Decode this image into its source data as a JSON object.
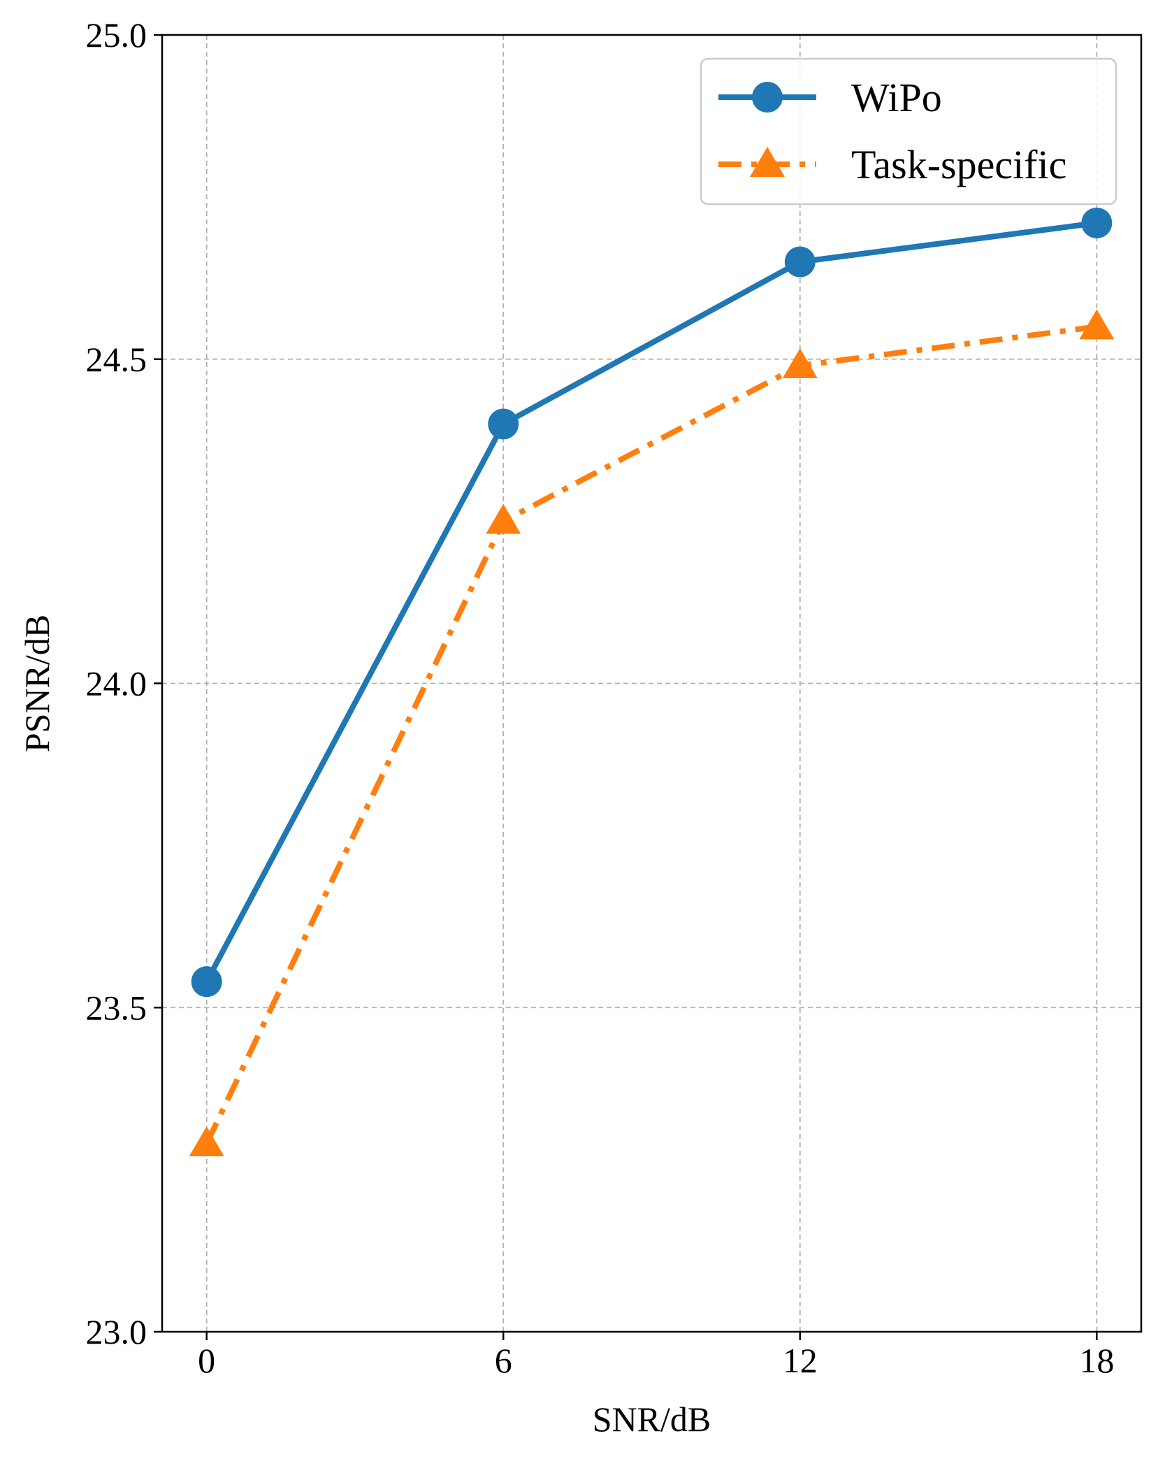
{
  "chart_data": {
    "type": "line",
    "xlabel": "SNR/dB",
    "ylabel": "PSNR/dB",
    "x": [
      0,
      6,
      12,
      18
    ],
    "xticks": [
      "0",
      "6",
      "12",
      "18"
    ],
    "xlim": [
      -0.9,
      18.9
    ],
    "ylim": [
      23.0,
      25.0
    ],
    "yticks": [
      "23.0",
      "23.5",
      "24.0",
      "24.5",
      "25.0"
    ],
    "grid": true,
    "legend_position": "top-right",
    "series": [
      {
        "name": "WiPo",
        "values": [
          23.54,
          24.4,
          24.65,
          24.71
        ],
        "color": "#1f77b4",
        "marker": "circle",
        "linestyle": "solid"
      },
      {
        "name": "Task-specific",
        "values": [
          23.29,
          24.25,
          24.49,
          24.55
        ],
        "color": "#ff7f0e",
        "marker": "triangle",
        "linestyle": "dashdot"
      }
    ]
  }
}
